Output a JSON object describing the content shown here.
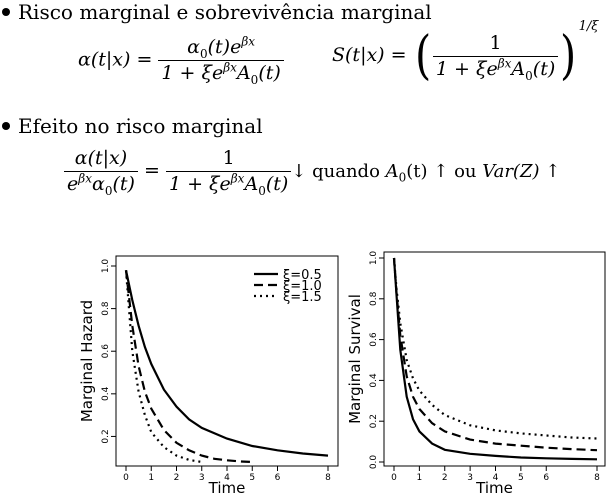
{
  "bullets": {
    "first": "Risco marginal e sobrevivência marginal",
    "second": "Efeito no risco marginal"
  },
  "equations": {
    "alpha_lhs": "α(t|x) =",
    "alpha_num": "α",
    "alpha_num_sub": "0",
    "alpha_num_rest": "(t)e",
    "alpha_num_sup": "βx",
    "den_pre": "1 + ξe",
    "den_sup": "βx",
    "den_A": "A",
    "den_sub": "0",
    "den_post": "(t)",
    "S_lhs": "S(t|x) =",
    "S_num": "1",
    "S_exp": "1/ξ",
    "ratio_num": "α(t|x)",
    "ratio_den_e": "e",
    "ratio_den_sup": "βx",
    "ratio_den_a": "α",
    "ratio_den_sub": "0",
    "ratio_den_post": "(t)",
    "ratio_eq": "=",
    "ratio_rhs_num": "1",
    "ratio_tail_1": "↓  quando ",
    "ratio_tail_A": "A",
    "ratio_tail_sub": "0",
    "ratio_tail_2": "(t) ↑  ou ",
    "ratio_tail_var": "Var(Z)",
    "ratio_tail_3": " ↑"
  },
  "chart_data": [
    {
      "type": "line",
      "xlabel": "Time",
      "ylabel": "Marginal Hazard",
      "xlim": [
        0,
        8
      ],
      "ylim": [
        0.08,
        1.0
      ],
      "xticks": [
        0,
        1,
        2,
        3,
        4,
        5,
        6,
        8
      ],
      "yticks": [
        0.2,
        0.4,
        0.6,
        0.8,
        1.0
      ],
      "xtick_labels": [
        "0",
        "1",
        "2",
        "3",
        "4",
        "5",
        "6",
        "8"
      ],
      "ytick_labels": [
        "0.2",
        "0.4",
        "0.6",
        "0.8",
        "1.0"
      ],
      "legend": {
        "position": "top-right",
        "entries": [
          "ξ=0.5",
          "ξ=1.0",
          "ξ=1.5"
        ]
      },
      "series": [
        {
          "name": "ξ=0.5",
          "style": "solid",
          "x": [
            0,
            0.25,
            0.5,
            0.75,
            1,
            1.5,
            2,
            2.5,
            3,
            4,
            5,
            6,
            7,
            8
          ],
          "y": [
            0.98,
            0.84,
            0.72,
            0.62,
            0.54,
            0.42,
            0.34,
            0.28,
            0.24,
            0.19,
            0.155,
            0.135,
            0.12,
            0.11
          ]
        },
        {
          "name": "ξ=1.0",
          "style": "dashed",
          "x": [
            0,
            0.25,
            0.5,
            0.75,
            1,
            1.5,
            2,
            2.5,
            3,
            3.5,
            4,
            4.5,
            5
          ],
          "y": [
            0.98,
            0.72,
            0.53,
            0.41,
            0.33,
            0.23,
            0.17,
            0.135,
            0.11,
            0.095,
            0.088,
            0.083,
            0.08
          ]
        },
        {
          "name": "ξ=1.5",
          "style": "dotted",
          "x": [
            0,
            0.25,
            0.5,
            0.75,
            1,
            1.5,
            2,
            2.5,
            3
          ],
          "y": [
            0.98,
            0.6,
            0.41,
            0.3,
            0.22,
            0.15,
            0.11,
            0.09,
            0.08
          ]
        }
      ]
    },
    {
      "type": "line",
      "xlabel": "Time",
      "ylabel": "Marginal Survival",
      "xlim": [
        0,
        8
      ],
      "ylim": [
        0,
        1.0
      ],
      "xticks": [
        0,
        1,
        2,
        3,
        4,
        5,
        6,
        8
      ],
      "yticks": [
        0.0,
        0.2,
        0.4,
        0.6,
        0.8,
        1.0
      ],
      "xtick_labels": [
        "0",
        "1",
        "2",
        "3",
        "4",
        "5",
        "6",
        "8"
      ],
      "ytick_labels": [
        "0.0",
        "0.2",
        "0.4",
        "0.6",
        "0.8",
        "1.0"
      ],
      "series": [
        {
          "name": "ξ=0.5",
          "style": "solid",
          "x": [
            0,
            0.1,
            0.25,
            0.5,
            0.75,
            1,
            1.5,
            2,
            3,
            4,
            5,
            6,
            7,
            8
          ],
          "y": [
            1.0,
            0.82,
            0.55,
            0.32,
            0.21,
            0.15,
            0.09,
            0.06,
            0.04,
            0.03,
            0.022,
            0.018,
            0.015,
            0.013
          ]
        },
        {
          "name": "ξ=1.0",
          "style": "dashed",
          "x": [
            0,
            0.1,
            0.25,
            0.5,
            0.75,
            1,
            1.5,
            2,
            3,
            4,
            5,
            6,
            7,
            8
          ],
          "y": [
            1.0,
            0.83,
            0.62,
            0.42,
            0.32,
            0.26,
            0.19,
            0.15,
            0.11,
            0.09,
            0.08,
            0.07,
            0.063,
            0.058
          ]
        },
        {
          "name": "ξ=1.5",
          "style": "dotted",
          "x": [
            0,
            0.1,
            0.25,
            0.5,
            0.75,
            1,
            1.5,
            2,
            3,
            4,
            5,
            6,
            7,
            8
          ],
          "y": [
            1.0,
            0.85,
            0.68,
            0.5,
            0.41,
            0.35,
            0.28,
            0.23,
            0.18,
            0.155,
            0.14,
            0.13,
            0.12,
            0.115
          ]
        }
      ]
    }
  ]
}
